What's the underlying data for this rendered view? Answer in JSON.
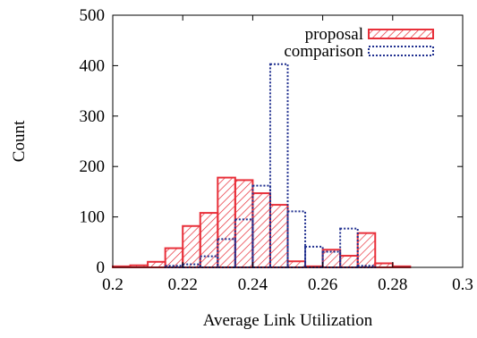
{
  "chart_data": {
    "type": "bar",
    "subtype": "histogram",
    "title": "",
    "xlabel": "Average Link Utilization",
    "ylabel": "Count",
    "xlim": [
      0.2,
      0.3
    ],
    "ylim": [
      0,
      500
    ],
    "bin_width": 0.005,
    "x_ticks": [
      "0.2",
      "0.22",
      "0.24",
      "0.26",
      "0.28",
      "0.3"
    ],
    "y_ticks": [
      "0",
      "100",
      "200",
      "300",
      "400",
      "500"
    ],
    "grid": false,
    "legend_position": "top-right",
    "series": [
      {
        "name": "proposal",
        "style": "hatched",
        "color": "#e8303a",
        "bins": [
          {
            "start": 0.2,
            "value": 2
          },
          {
            "start": 0.205,
            "value": 4
          },
          {
            "start": 0.21,
            "value": 11
          },
          {
            "start": 0.215,
            "value": 38
          },
          {
            "start": 0.22,
            "value": 82
          },
          {
            "start": 0.225,
            "value": 108
          },
          {
            "start": 0.23,
            "value": 178
          },
          {
            "start": 0.235,
            "value": 173
          },
          {
            "start": 0.24,
            "value": 147
          },
          {
            "start": 0.245,
            "value": 124
          },
          {
            "start": 0.25,
            "value": 12
          },
          {
            "start": 0.255,
            "value": 2
          },
          {
            "start": 0.26,
            "value": 35
          },
          {
            "start": 0.265,
            "value": 23
          },
          {
            "start": 0.27,
            "value": 68
          },
          {
            "start": 0.275,
            "value": 8
          },
          {
            "start": 0.28,
            "value": 2
          }
        ]
      },
      {
        "name": "comparison",
        "style": "dotted-outline",
        "color": "#1f2f8f",
        "bins": [
          {
            "start": 0.215,
            "value": 3
          },
          {
            "start": 0.22,
            "value": 6
          },
          {
            "start": 0.225,
            "value": 22
          },
          {
            "start": 0.23,
            "value": 56
          },
          {
            "start": 0.235,
            "value": 95
          },
          {
            "start": 0.24,
            "value": 162
          },
          {
            "start": 0.245,
            "value": 403
          },
          {
            "start": 0.25,
            "value": 111
          },
          {
            "start": 0.255,
            "value": 41
          },
          {
            "start": 0.26,
            "value": 31
          },
          {
            "start": 0.265,
            "value": 77
          },
          {
            "start": 0.27,
            "value": 3
          }
        ]
      }
    ]
  }
}
